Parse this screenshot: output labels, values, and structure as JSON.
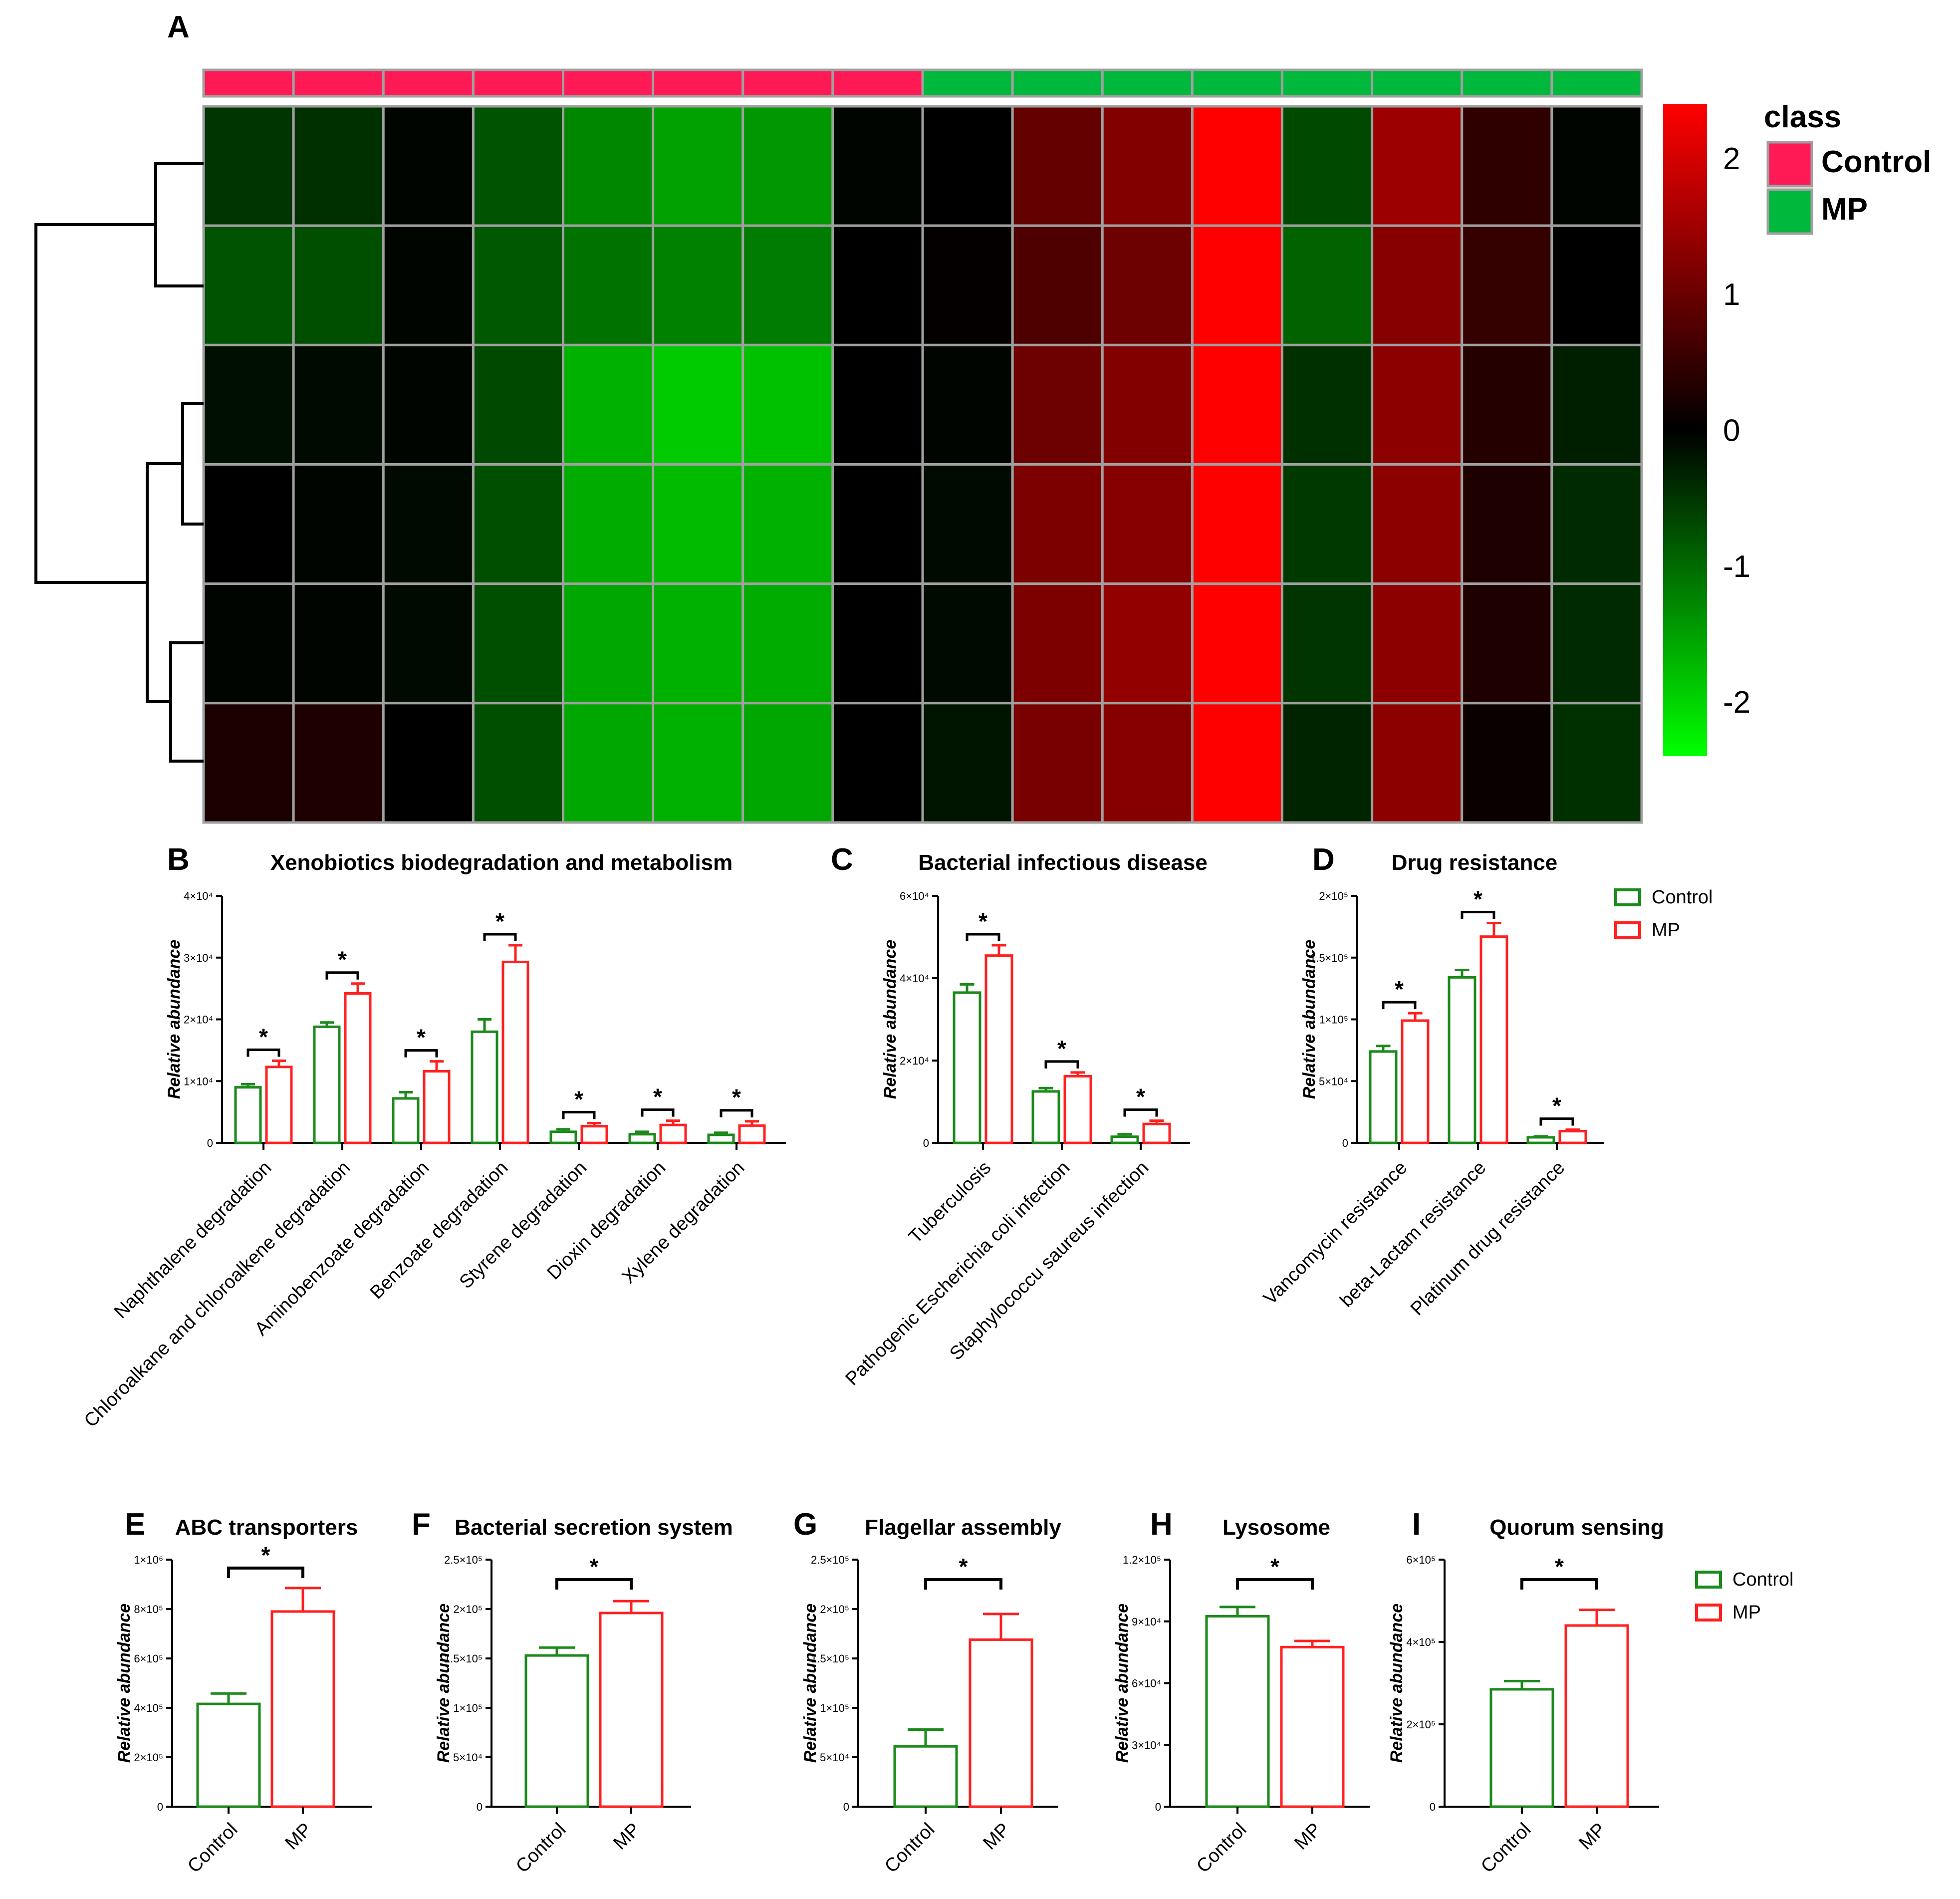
{
  "heatmap": {
    "label": "A",
    "legend_title": "class",
    "classes": [
      {
        "name": "Control",
        "color": "#ff1a55"
      },
      {
        "name": "MP",
        "color": "#00b83c"
      }
    ],
    "column_classes": [
      "Control",
      "Control",
      "Control",
      "Control",
      "Control",
      "Control",
      "Control",
      "Control",
      "MP",
      "MP",
      "MP",
      "MP",
      "MP",
      "MP",
      "MP",
      "MP"
    ],
    "colorbar_ticks": [
      "2",
      "1",
      "0",
      "-1",
      "-2"
    ],
    "colorbar_range": [
      -2.4,
      2.4
    ],
    "values": [
      [
        -0.5,
        -0.45,
        -0.05,
        -0.8,
        -1.3,
        -1.55,
        -1.45,
        -0.05,
        0.0,
        0.95,
        1.25,
        2.45,
        -0.7,
        1.5,
        0.45,
        -0.05
      ],
      [
        -0.8,
        -0.75,
        -0.05,
        -0.85,
        -1.1,
        -1.25,
        -1.2,
        0.0,
        0.05,
        0.75,
        1.05,
        2.45,
        -0.95,
        1.3,
        0.5,
        0.0
      ],
      [
        -0.15,
        -0.1,
        -0.05,
        -0.7,
        -1.7,
        -1.95,
        -1.85,
        0.0,
        -0.05,
        1.05,
        1.25,
        2.45,
        -0.45,
        1.35,
        0.35,
        -0.3
      ],
      [
        0.0,
        -0.05,
        -0.1,
        -0.75,
        -1.65,
        -1.8,
        -1.7,
        0.0,
        -0.1,
        1.2,
        1.3,
        2.45,
        -0.55,
        1.35,
        0.3,
        -0.4
      ],
      [
        -0.05,
        -0.05,
        -0.1,
        -0.75,
        -1.6,
        -1.7,
        -1.65,
        0.0,
        -0.1,
        1.2,
        1.4,
        2.45,
        -0.5,
        1.35,
        0.3,
        -0.4
      ],
      [
        0.25,
        0.3,
        0.0,
        -0.75,
        -1.6,
        -1.7,
        -1.6,
        0.0,
        -0.2,
        1.15,
        1.3,
        2.45,
        -0.35,
        1.35,
        0.1,
        -0.45
      ]
    ]
  },
  "legend": {
    "control": "Control",
    "mp": "MP"
  },
  "chart_data": [
    {
      "label": "B",
      "type": "bar",
      "title": "Xenobiotics biodegradation and metabolism",
      "ylabel": "Relative abundance",
      "ylim": [
        0,
        40000
      ],
      "ytick_values": [
        0,
        10000,
        20000,
        30000,
        40000
      ],
      "ytick_labels": [
        "0",
        "1×10⁴",
        "2×10⁴",
        "3×10⁴",
        "4×10⁴"
      ],
      "categories": [
        "Naphthalene degradation",
        "Chloroalkane and chloroalkene degradation",
        "Aminobenzoate degradation",
        "Benzoate degradation",
        "Styrene degradation",
        "Dioxin degradation",
        "Xylene degradation"
      ],
      "series": [
        {
          "name": "Control",
          "color": "#1a8a1a",
          "values": [
            9000,
            18800,
            7200,
            18000,
            1800,
            1400,
            1300
          ],
          "errors": [
            500,
            700,
            1000,
            2000,
            400,
            400,
            350
          ]
        },
        {
          "name": "MP",
          "color": "#ff2020",
          "values": [
            12300,
            24200,
            11600,
            29300,
            2700,
            2900,
            2800
          ],
          "errors": [
            1000,
            1600,
            1600,
            2700,
            500,
            700,
            700
          ]
        }
      ],
      "significance": [
        "*",
        "*",
        "*",
        "*",
        "*",
        "*",
        "*"
      ]
    },
    {
      "label": "C",
      "type": "bar",
      "title": "Bacterial infectious disease",
      "ylabel": "Relative abundance",
      "ylim": [
        0,
        60000
      ],
      "ytick_values": [
        0,
        20000,
        40000,
        60000
      ],
      "ytick_labels": [
        "0",
        "2×10⁴",
        "4×10⁴",
        "6×10⁴"
      ],
      "categories": [
        "Tuberculosis",
        "Pathogenic Escherichia coli infection",
        "Staphylococcu saureus infection"
      ],
      "series": [
        {
          "name": "Control",
          "color": "#1a8a1a",
          "values": [
            36500,
            12500,
            1500
          ],
          "errors": [
            2000,
            800,
            600
          ]
        },
        {
          "name": "MP",
          "color": "#ff2020",
          "values": [
            45500,
            16200,
            4600
          ],
          "errors": [
            2500,
            900,
            800
          ]
        }
      ],
      "significance": [
        "*",
        "*",
        "*"
      ]
    },
    {
      "label": "D",
      "type": "bar",
      "title": "Drug resistance",
      "ylabel": "Relative abundance",
      "ylim": [
        0,
        200000
      ],
      "ytick_values": [
        0,
        50000,
        100000,
        150000,
        200000
      ],
      "ytick_labels": [
        "0",
        "5×10⁴",
        "1×10⁵",
        "1.5×10⁵",
        "2×10⁵"
      ],
      "categories": [
        "Vancomycin resistance",
        "beta-Lactam resistance",
        "Platinum drug resistance"
      ],
      "series": [
        {
          "name": "Control",
          "color": "#1a8a1a",
          "values": [
            74000,
            134000,
            4500
          ],
          "errors": [
            4500,
            6000,
            800
          ]
        },
        {
          "name": "MP",
          "color": "#ff2020",
          "values": [
            99000,
            167000,
            9500
          ],
          "errors": [
            6000,
            11000,
            1200
          ]
        }
      ],
      "significance": [
        "*",
        "*",
        "*"
      ]
    },
    {
      "label": "E",
      "type": "bar",
      "title": "ABC transporters",
      "ylabel": "Relative abundance",
      "ylim": [
        0,
        1000000
      ],
      "ytick_values": [
        0,
        200000,
        400000,
        600000,
        800000,
        1000000
      ],
      "ytick_labels": [
        "0",
        "2×10⁵",
        "4×10⁵",
        "6×10⁵",
        "8×10⁵",
        "1×10⁶"
      ],
      "categories": [
        "Control",
        "MP"
      ],
      "values": [
        416000,
        790000
      ],
      "errors": [
        42000,
        95000
      ],
      "colors": [
        "#1a8a1a",
        "#ff2020"
      ],
      "significance": "*"
    },
    {
      "label": "F",
      "type": "bar",
      "title": "Bacterial secretion system",
      "ylabel": "Relative abundance",
      "ylim": [
        0,
        250000
      ],
      "ytick_values": [
        0,
        50000,
        100000,
        150000,
        200000,
        250000
      ],
      "ytick_labels": [
        "0",
        "5×10⁴",
        "1×10⁵",
        "1.5×10⁵",
        "2×10⁵",
        "2.5×10⁵"
      ],
      "categories": [
        "Control",
        "MP"
      ],
      "values": [
        153000,
        196000
      ],
      "errors": [
        8000,
        12000
      ],
      "colors": [
        "#1a8a1a",
        "#ff2020"
      ],
      "significance": "*"
    },
    {
      "label": "G",
      "type": "bar",
      "title": "Flagellar assembly",
      "ylabel": "Relative abundance",
      "ylim": [
        0,
        250000
      ],
      "ytick_values": [
        0,
        50000,
        100000,
        150000,
        200000,
        250000
      ],
      "ytick_labels": [
        "0",
        "5×10⁴",
        "1×10⁵",
        "1.5×10⁵",
        "2×10⁵",
        "2.5×10⁵"
      ],
      "categories": [
        "Control",
        "MP"
      ],
      "values": [
        61000,
        169000
      ],
      "errors": [
        17000,
        26000
      ],
      "colors": [
        "#1a8a1a",
        "#ff2020"
      ],
      "significance": "*"
    },
    {
      "label": "H",
      "type": "bar",
      "title": "Lysosome",
      "ylabel": "Relative abundance",
      "ylim": [
        0,
        120000
      ],
      "ytick_values": [
        0,
        30000,
        60000,
        90000,
        120000
      ],
      "ytick_labels": [
        "0",
        "3×10⁴",
        "6×10⁴",
        "9×10⁴",
        "1.2×10⁵"
      ],
      "categories": [
        "Control",
        "MP"
      ],
      "values": [
        92500,
        77500
      ],
      "errors": [
        4500,
        3000
      ],
      "colors": [
        "#1a8a1a",
        "#ff2020"
      ],
      "significance": "*"
    },
    {
      "label": "I",
      "type": "bar",
      "title": "Quorum sensing",
      "ylabel": "Relative abundance",
      "ylim": [
        0,
        600000
      ],
      "ytick_values": [
        0,
        200000,
        400000,
        600000
      ],
      "ytick_labels": [
        "0",
        "2×10⁵",
        "4×10⁵",
        "6×10⁵"
      ],
      "categories": [
        "Control",
        "MP"
      ],
      "values": [
        285000,
        440000
      ],
      "errors": [
        20000,
        38000
      ],
      "colors": [
        "#1a8a1a",
        "#ff2020"
      ],
      "significance": "*"
    }
  ]
}
